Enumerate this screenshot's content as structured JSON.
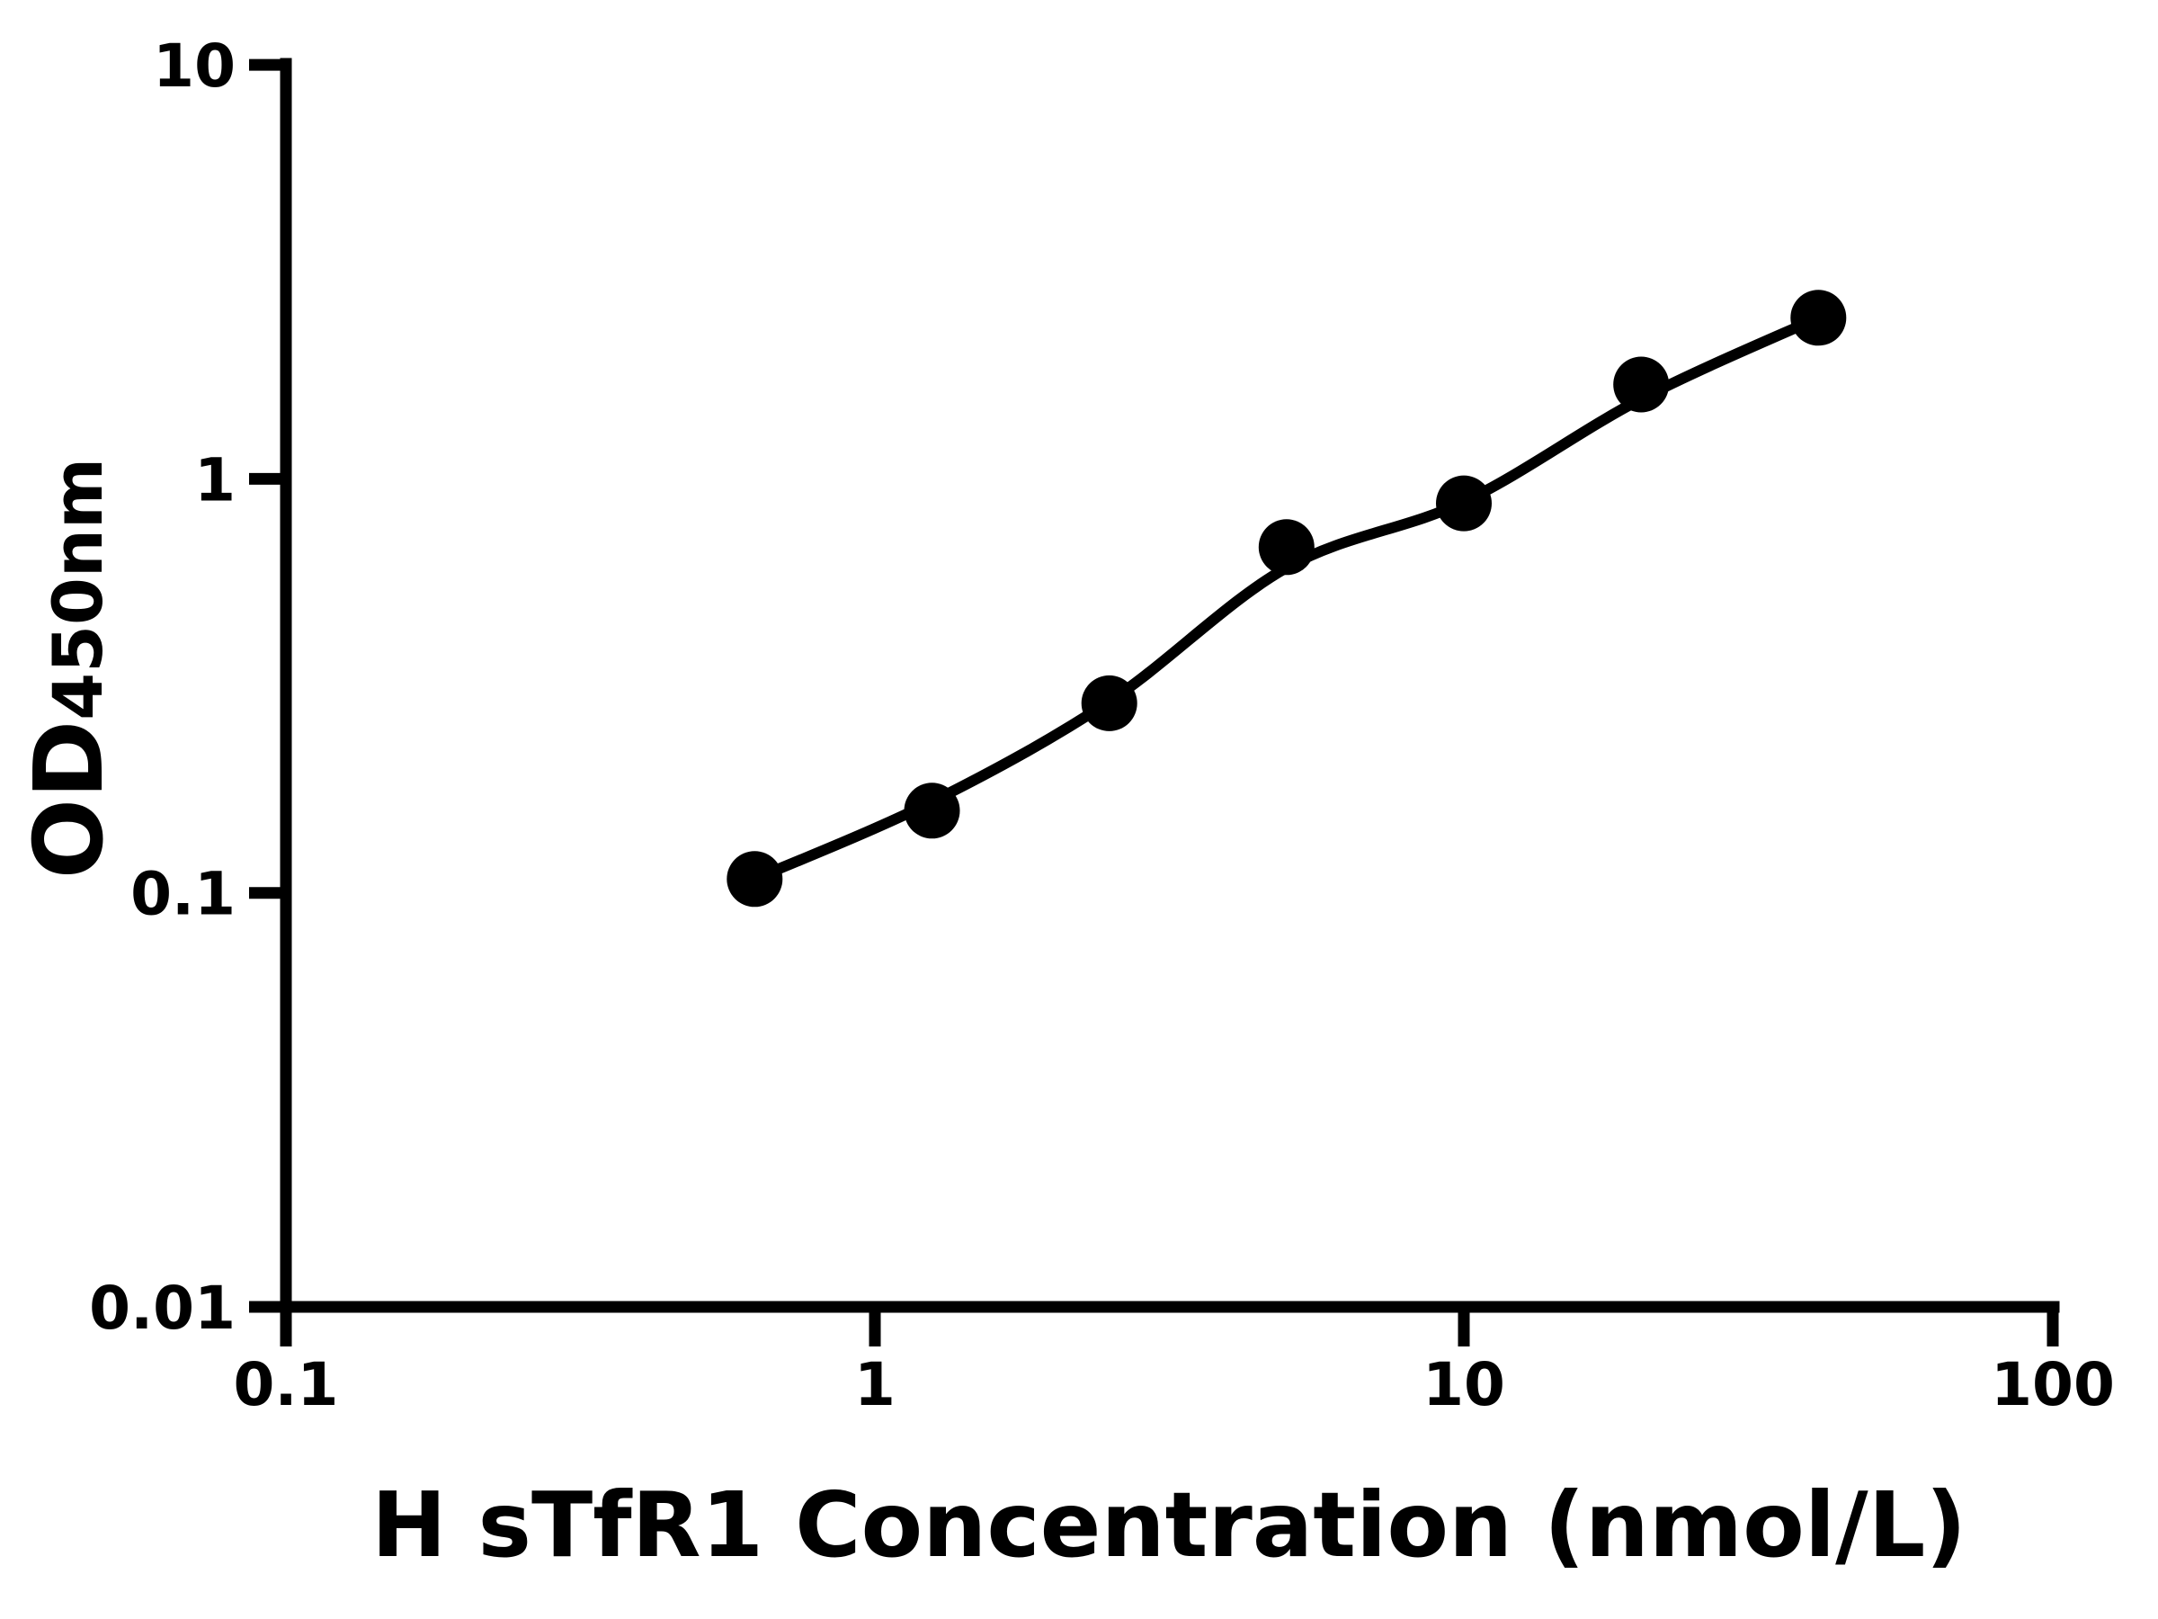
{
  "chart_data": {
    "type": "scatter",
    "title": "",
    "xlabel": "H sTfR1 Concentration (nmol/L)",
    "ylabel_main": "OD",
    "ylabel_sub": "450nm",
    "x_scale": "log",
    "y_scale": "log",
    "xlim": [
      0.1,
      100
    ],
    "ylim": [
      0.01,
      10
    ],
    "grid": false,
    "legend": null,
    "x_ticks": [
      {
        "value": 0.1,
        "label": "0.1"
      },
      {
        "value": 1,
        "label": "1"
      },
      {
        "value": 10,
        "label": "10"
      },
      {
        "value": 100,
        "label": "100"
      }
    ],
    "y_ticks": [
      {
        "value": 0.01,
        "label": "0.01"
      },
      {
        "value": 0.1,
        "label": "0.1"
      },
      {
        "value": 1,
        "label": "1"
      },
      {
        "value": 10,
        "label": "10"
      }
    ],
    "series": [
      {
        "name": "standard-curve-points",
        "marker": "circle",
        "color": "#000000",
        "x": [
          0.625,
          1.25,
          2.5,
          5,
          10,
          20,
          40
        ],
        "y": [
          0.108,
          0.158,
          0.287,
          0.684,
          0.873,
          1.69,
          2.45
        ]
      }
    ],
    "fit_line": {
      "name": "4pl-fit-curve",
      "color": "#000000",
      "x": [
        0.625,
        1.25,
        2.5,
        5,
        10,
        20,
        40
      ],
      "y": [
        0.108,
        0.166,
        0.29,
        0.61,
        0.88,
        1.56,
        2.45
      ]
    },
    "colors": {
      "foreground": "#000000",
      "background": "#ffffff"
    }
  }
}
